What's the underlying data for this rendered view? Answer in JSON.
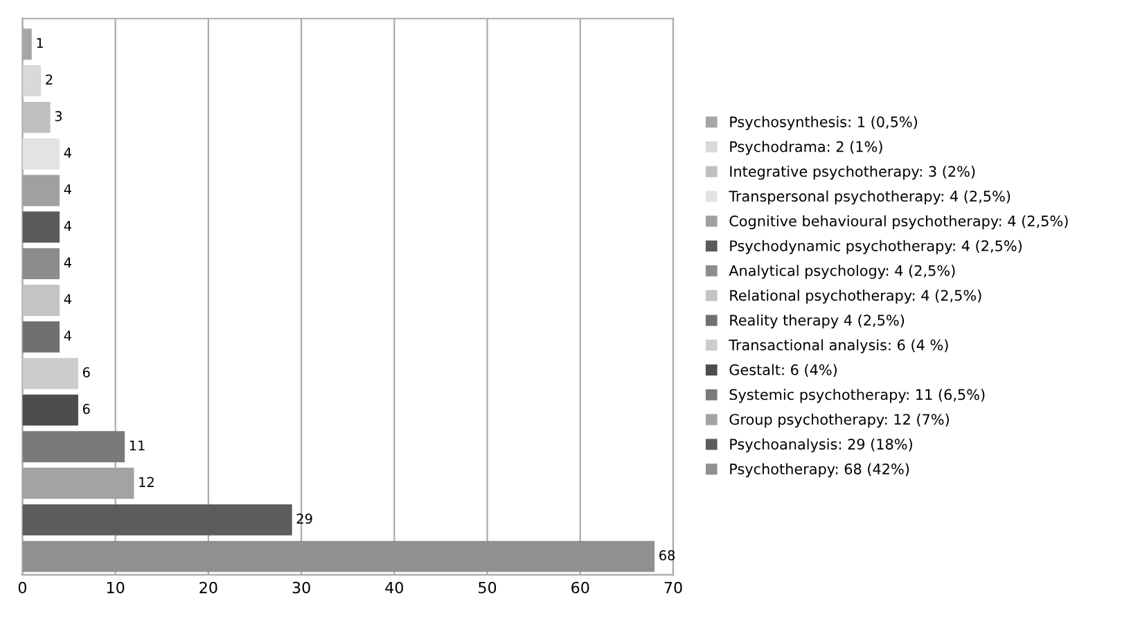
{
  "chart_data": {
    "type": "bar",
    "orientation": "horizontal",
    "categories": [
      null,
      null,
      null,
      null,
      null,
      null,
      null,
      null,
      null,
      null,
      null,
      null,
      null,
      null,
      null
    ],
    "series": [
      {
        "name": "Psychosynthesis: 1 (0,5%)",
        "color": "#a6a6a6",
        "values": [
          1,
          null,
          null,
          null,
          null,
          null,
          null,
          null,
          null,
          null,
          null,
          null,
          null,
          null,
          null
        ]
      },
      {
        "name": "Psychodrama: 2 (1%)",
        "color": "#d9d9d9",
        "values": [
          null,
          2,
          null,
          null,
          null,
          null,
          null,
          null,
          null,
          null,
          null,
          null,
          null,
          null,
          null
        ]
      },
      {
        "name": "Integrative psychotherapy: 3 (2%)",
        "color": "#bfbfbf",
        "values": [
          null,
          null,
          3,
          null,
          null,
          null,
          null,
          null,
          null,
          null,
          null,
          null,
          null,
          null,
          null
        ]
      },
      {
        "name": "Transpersonal psychotherapy: 4 (2,5%)",
        "color": "#e3e3e3",
        "values": [
          null,
          null,
          null,
          4,
          null,
          null,
          null,
          null,
          null,
          null,
          null,
          null,
          null,
          null,
          null
        ]
      },
      {
        "name": "Cognitive behavioural psychotherapy: 4 (2,5%)",
        "color": "#a0a0a0",
        "values": [
          null,
          null,
          null,
          null,
          4,
          null,
          null,
          null,
          null,
          null,
          null,
          null,
          null,
          null,
          null
        ]
      },
      {
        "name": "Psychodynamic psychotherapy: 4 (2,5%)",
        "color": "#5a5a5a",
        "values": [
          null,
          null,
          null,
          null,
          null,
          4,
          null,
          null,
          null,
          null,
          null,
          null,
          null,
          null,
          null
        ]
      },
      {
        "name": "Analytical psychology: 4 (2,5%)",
        "color": "#8c8c8c",
        "values": [
          null,
          null,
          null,
          null,
          null,
          null,
          4,
          null,
          null,
          null,
          null,
          null,
          null,
          null,
          null
        ]
      },
      {
        "name": "Relational psychotherapy: 4 (2,5%)",
        "color": "#c4c4c4",
        "values": [
          null,
          null,
          null,
          null,
          null,
          null,
          null,
          4,
          null,
          null,
          null,
          null,
          null,
          null,
          null
        ]
      },
      {
        "name": "Reality therapy 4 (2,5%)",
        "color": "#707070",
        "values": [
          null,
          null,
          null,
          null,
          null,
          null,
          null,
          null,
          4,
          null,
          null,
          null,
          null,
          null,
          null
        ]
      },
      {
        "name": "Transactional analysis: 6 (4 %)",
        "color": "#cccccc",
        "values": [
          null,
          null,
          null,
          null,
          null,
          null,
          null,
          null,
          null,
          6,
          null,
          null,
          null,
          null,
          null
        ]
      },
      {
        "name": "Gestalt: 6 (4%)",
        "color": "#4d4d4d",
        "values": [
          null,
          null,
          null,
          null,
          null,
          null,
          null,
          null,
          null,
          null,
          6,
          null,
          null,
          null,
          null
        ]
      },
      {
        "name": "Systemic psychotherapy: 11 (6,5%)",
        "color": "#7a7a7a",
        "values": [
          null,
          null,
          null,
          null,
          null,
          null,
          null,
          null,
          null,
          null,
          null,
          11,
          null,
          null,
          null
        ]
      },
      {
        "name": "Group psychotherapy: 12 (7%)",
        "color": "#a3a3a3",
        "values": [
          null,
          null,
          null,
          null,
          null,
          null,
          null,
          null,
          null,
          null,
          null,
          null,
          12,
          null,
          null
        ]
      },
      {
        "name": "Psychoanalysis: 29 (18%)",
        "color": "#5c5c5c",
        "values": [
          null,
          null,
          null,
          null,
          null,
          null,
          null,
          null,
          null,
          null,
          null,
          null,
          null,
          29,
          null
        ]
      },
      {
        "name": "Psychotherapy: 68 (42%)",
        "color": "#909090",
        "values": [
          null,
          null,
          null,
          null,
          null,
          null,
          null,
          null,
          null,
          null,
          null,
          null,
          null,
          null,
          68
        ]
      }
    ],
    "xlim": [
      0,
      70
    ],
    "xticks": [
      0,
      10,
      20,
      30,
      40,
      50,
      60,
      70
    ],
    "grid": "x",
    "legend": "right",
    "data_labels": true,
    "tick_labels": "x"
  }
}
